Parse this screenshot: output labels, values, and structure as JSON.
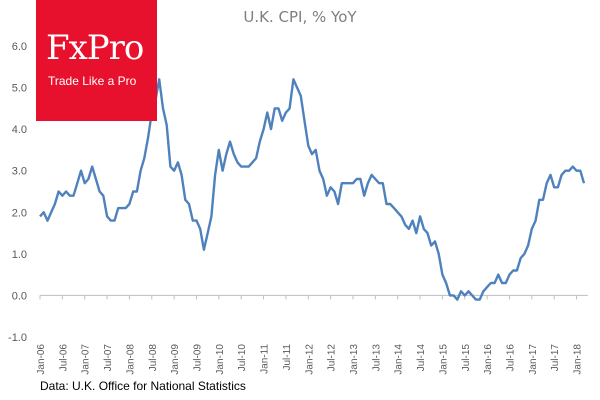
{
  "chart_data": {
    "type": "line",
    "title": "U.K. CPI, % YoY",
    "xlabel": "",
    "ylabel": "",
    "ylim": [
      -1.0,
      6.0
    ],
    "yticks": [
      "6.0",
      "5.0",
      "4.0",
      "3.0",
      "2.0",
      "1.0",
      "0.0",
      "-1.0"
    ],
    "ytick_values": [
      6,
      5,
      4,
      3,
      2,
      1,
      0,
      -1
    ],
    "xticks": [
      "Jan-06",
      "Jul-06",
      "Jan-07",
      "Jul-07",
      "Jan-08",
      "Jul-08",
      "Jan-09",
      "Jul-09",
      "Jan-10",
      "Jul-10",
      "Jan-11",
      "Jul-11",
      "Jan-12",
      "Jul-12",
      "Jan-13",
      "Jul-13",
      "Jan-14",
      "Jul-14",
      "Jan-15",
      "Jul-15",
      "Jan-16",
      "Jul-16",
      "Jan-17",
      "Jul-17",
      "Jan-18"
    ],
    "grid": false,
    "legend": "none",
    "line_color": "#4f81bd",
    "series": [
      {
        "x_start": "Jan-06",
        "x_end": "Feb-18",
        "values": [
          1.9,
          2.0,
          1.8,
          2.0,
          2.2,
          2.5,
          2.4,
          2.5,
          2.4,
          2.4,
          2.7,
          3.0,
          2.7,
          2.8,
          3.1,
          2.8,
          2.5,
          2.4,
          1.9,
          1.8,
          1.8,
          2.1,
          2.1,
          2.1,
          2.2,
          2.5,
          2.5,
          3.0,
          3.3,
          3.8,
          4.4,
          4.7,
          5.2,
          4.5,
          4.1,
          3.1,
          3.0,
          3.2,
          2.9,
          2.3,
          2.2,
          1.8,
          1.8,
          1.6,
          1.1,
          1.5,
          1.9,
          2.9,
          3.5,
          3.0,
          3.4,
          3.7,
          3.4,
          3.2,
          3.1,
          3.1,
          3.1,
          3.2,
          3.3,
          3.7,
          4.0,
          4.4,
          4.0,
          4.5,
          4.5,
          4.2,
          4.4,
          4.5,
          5.2,
          5.0,
          4.8,
          4.2,
          3.6,
          3.4,
          3.5,
          3.0,
          2.8,
          2.4,
          2.6,
          2.5,
          2.2,
          2.7,
          2.7,
          2.7,
          2.7,
          2.8,
          2.8,
          2.4,
          2.7,
          2.9,
          2.8,
          2.7,
          2.7,
          2.2,
          2.2,
          2.1,
          2.0,
          1.9,
          1.7,
          1.6,
          1.8,
          1.5,
          1.9,
          1.6,
          1.5,
          1.2,
          1.3,
          1.0,
          0.5,
          0.3,
          0.0,
          0.0,
          -0.1,
          0.1,
          0.0,
          0.1,
          0.0,
          -0.1,
          -0.1,
          0.1,
          0.2,
          0.3,
          0.3,
          0.5,
          0.3,
          0.3,
          0.5,
          0.6,
          0.6,
          0.9,
          1.0,
          1.2,
          1.6,
          1.8,
          2.3,
          2.3,
          2.7,
          2.9,
          2.6,
          2.6,
          2.9,
          3.0,
          3.0,
          3.1,
          3.0,
          3.0,
          2.7
        ]
      }
    ]
  },
  "logo": {
    "mark": "FxPro",
    "tagline": "Trade Like a Pro",
    "color": "#e8112d"
  },
  "source": "Data: U.K. Office for National Statistics"
}
